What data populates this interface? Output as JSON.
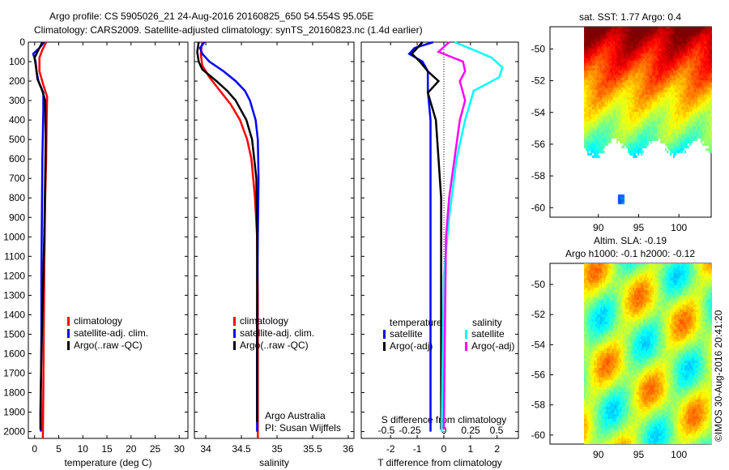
{
  "title1": "Argo profile: CS 5905026_21 24-Aug-2016 20160825_650 54.554S 95.05E",
  "title2": "Climatology: CARS2009. Satellite-adjusted climatology: synTS_20160823.nc (1.4d earlier)",
  "credit": "©IMOS 30-Aug-2016 20:41:20",
  "chart_data": [
    {
      "type": "line",
      "name": "temperature",
      "xlabel": "temperature (deg C)",
      "xlim": [
        -1.3,
        31.8
      ],
      "ylim": [
        0,
        2035
      ],
      "yreversed": true,
      "xticks": [
        0,
        5,
        10,
        15,
        20,
        25,
        30
      ],
      "yticks": [
        0,
        100,
        200,
        300,
        400,
        500,
        600,
        700,
        800,
        900,
        1000,
        1100,
        1200,
        1300,
        1400,
        1500,
        1600,
        1700,
        1800,
        1900,
        2000
      ],
      "legend": [
        "climatology",
        "satellite-adj. clim.",
        "Argo(..raw -QC)"
      ],
      "series": [
        {
          "name": "climatology",
          "color": "#ff0000",
          "depth": [
            0,
            40,
            80,
            150,
            220,
            280,
            400,
            600,
            800,
            1000,
            1200,
            1500,
            1800,
            2035
          ],
          "values": [
            2.4,
            1.6,
            1.0,
            1.0,
            1.8,
            2.6,
            2.5,
            2.4,
            2.2,
            2.1,
            2.0,
            1.9,
            1.8,
            1.7
          ]
        },
        {
          "name": "satellite-adj. clim.",
          "color": "#0000ff",
          "depth": [
            0,
            30,
            60,
            100,
            150,
            200,
            260,
            350,
            600,
            900,
            1200,
            1500,
            1800,
            2000
          ],
          "values": [
            2.0,
            1.0,
            -0.3,
            0.2,
            0.4,
            0.8,
            1.8,
            1.8,
            1.6,
            1.5,
            1.4,
            1.4,
            1.3,
            1.3
          ]
        },
        {
          "name": "Argo(..raw -QC)",
          "color": "#000000",
          "depth": [
            0,
            40,
            80,
            130,
            190,
            250,
            300,
            500,
            700,
            1000,
            1300,
            1600,
            1900,
            1990
          ],
          "values": [
            1.6,
            0.8,
            0.0,
            0.3,
            0.6,
            1.6,
            2.2,
            2.3,
            2.2,
            2.0,
            1.7,
            1.4,
            1.2,
            1.2
          ]
        }
      ]
    },
    {
      "type": "line",
      "name": "salinity",
      "xlabel": "salinity",
      "xlim": [
        33.84,
        36.08
      ],
      "ylim": [
        0,
        2035
      ],
      "yreversed": true,
      "xticks": [
        34,
        34.5,
        35,
        35.5,
        36
      ],
      "legend": [
        "climatology",
        "satellite-adj. clim.",
        "Argo(..raw -QC)"
      ],
      "annotations": [
        "Argo Australia",
        "PI: Susan Wijffels"
      ],
      "series": [
        {
          "name": "climatology",
          "color": "#ff0000",
          "depth": [
            0,
            60,
            120,
            180,
            250,
            320,
            400,
            500,
            600,
            800,
            1000,
            1300,
            1600,
            2035
          ],
          "values": [
            33.95,
            33.93,
            33.95,
            34.05,
            34.2,
            34.35,
            34.48,
            34.58,
            34.64,
            34.69,
            34.72,
            34.73,
            34.73,
            34.73
          ]
        },
        {
          "name": "satellite-adj. clim.",
          "color": "#0000ff",
          "depth": [
            0,
            30,
            60,
            100,
            150,
            200,
            250,
            300,
            400,
            500,
            700,
            1000,
            1500,
            2000
          ],
          "values": [
            33.98,
            33.92,
            33.95,
            34.05,
            34.25,
            34.42,
            34.55,
            34.62,
            34.7,
            34.73,
            34.74,
            34.73,
            34.72,
            34.72
          ]
        },
        {
          "name": "Argo(..raw -QC)",
          "color": "#000000",
          "depth": [
            0,
            50,
            100,
            140,
            200,
            250,
            300,
            400,
            500,
            700,
            1000,
            1400,
            1700,
            1950
          ],
          "values": [
            33.9,
            33.88,
            33.9,
            33.95,
            34.15,
            34.3,
            34.42,
            34.57,
            34.65,
            34.71,
            34.72,
            34.72,
            34.72,
            34.72
          ]
        }
      ]
    },
    {
      "type": "line",
      "name": "differences",
      "xlabel": "T difference from climatology",
      "x2label": "S difference from climatology",
      "xlim": [
        -3.1,
        2.8
      ],
      "ylim": [
        0,
        2035
      ],
      "yreversed": true,
      "xticks": [
        -2,
        -1,
        0,
        1,
        2
      ],
      "x2ticks": [
        -0.5,
        -0.25,
        0,
        0.25,
        0.5
      ],
      "legend_titles": [
        "temperature",
        "salinity"
      ],
      "legend": [
        "satellite",
        "Argo(-adj)",
        "satellite",
        "Argo(-adj)"
      ],
      "series": [
        {
          "name": "T satellite",
          "color": "#0000ff",
          "depth": [
            0,
            30,
            60,
            100,
            150,
            250,
            400,
            600,
            1000,
            1500,
            2000
          ],
          "values": [
            -0.4,
            -1.1,
            -1.3,
            -0.8,
            -0.6,
            -0.6,
            -0.5,
            -0.5,
            -0.5,
            -0.5,
            -0.5
          ]
        },
        {
          "name": "T Argo(-adj)",
          "color": "#000000",
          "depth": [
            0,
            60,
            100,
            150,
            200,
            260,
            400,
            600,
            800,
            1000,
            1500,
            1990
          ],
          "values": [
            -0.8,
            -1.2,
            -0.9,
            -0.6,
            -0.2,
            -0.6,
            -0.3,
            -0.2,
            -0.1,
            -0.1,
            -0.1,
            -0.1
          ]
        },
        {
          "name": "S satellite",
          "color": "#00ffff",
          "depth": [
            0,
            40,
            80,
            130,
            180,
            250,
            400,
            600,
            900,
            1200,
            1600,
            2000
          ],
          "values": [
            0.1,
            0.28,
            0.45,
            0.55,
            0.52,
            0.28,
            0.2,
            0.12,
            0.05,
            0.0,
            -0.01,
            -0.02
          ]
        },
        {
          "name": "S Argo(-adj)",
          "color": "#ff00ff",
          "depth": [
            0,
            50,
            100,
            150,
            200,
            300,
            400,
            600,
            800,
            1000,
            1500,
            1990
          ],
          "values": [
            0.05,
            -0.05,
            0.18,
            0.2,
            0.15,
            0.2,
            0.15,
            0.1,
            0.05,
            0.02,
            0.01,
            0.0
          ]
        }
      ]
    },
    {
      "type": "heatmap",
      "name": "sst-map",
      "title": "sat. SST: 1.77 Argo: 0.4",
      "xticks": [
        90,
        95,
        100
      ],
      "yticks": [
        -50,
        -52,
        -54,
        -56,
        -58,
        -60
      ],
      "xlim": [
        84,
        104
      ],
      "ylim": [
        -60.6,
        -48.6
      ]
    },
    {
      "type": "heatmap",
      "name": "sla-map",
      "title": "Altim. SLA: -0.19",
      "subtitle": "Argo h1000: -0.1 h2000: -0.12",
      "xticks": [
        90,
        95,
        100
      ],
      "yticks": [
        -50,
        -52,
        -54,
        -56,
        -58,
        -60
      ],
      "xlim": [
        84,
        104
      ],
      "ylim": [
        -60.6,
        -48.6
      ]
    }
  ]
}
